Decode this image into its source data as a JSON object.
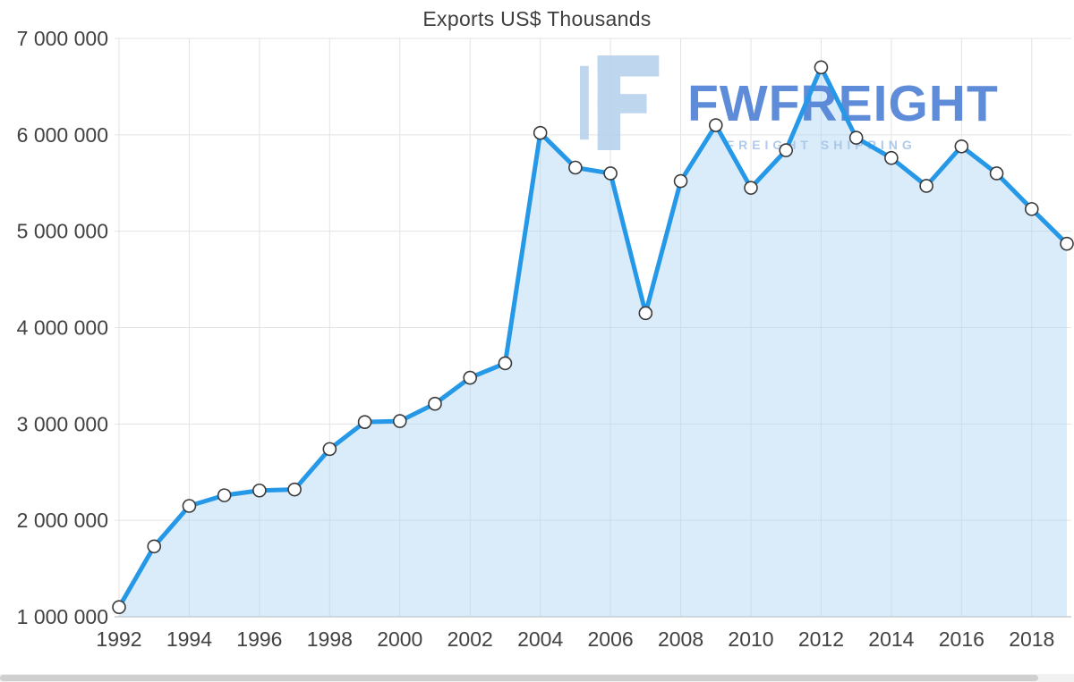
{
  "chart_data": {
    "type": "area",
    "title": "Exports US$ Thousands",
    "x": [
      1992,
      1993,
      1994,
      1995,
      1996,
      1997,
      1998,
      1999,
      2000,
      2001,
      2002,
      2003,
      2004,
      2005,
      2006,
      2007,
      2008,
      2009,
      2010,
      2011,
      2012,
      2013,
      2014,
      2015,
      2016,
      2017,
      2018,
      2019
    ],
    "values": [
      1100000,
      1730000,
      2150000,
      2260000,
      2310000,
      2320000,
      2740000,
      3020000,
      3030000,
      3210000,
      3480000,
      3630000,
      6020000,
      5660000,
      5600000,
      4150000,
      5520000,
      6100000,
      5450000,
      5840000,
      6700000,
      5970000,
      5760000,
      5470000,
      5880000,
      5600000,
      5230000,
      4870000
    ],
    "ylim": [
      1000000,
      7000000
    ],
    "y_ticks": [
      7000000,
      6000000,
      5000000,
      4000000,
      3000000,
      2000000,
      1000000
    ],
    "y_tick_labels": [
      "7 000 000",
      "6 000 000",
      "5 000 000",
      "4 000 000",
      "3 000 000",
      "2 000 000",
      "1 000 000"
    ],
    "x_ticks": [
      1992,
      1994,
      1996,
      1998,
      2000,
      2002,
      2004,
      2006,
      2008,
      2010,
      2012,
      2014,
      2016,
      2018
    ],
    "x_tick_labels": [
      "1992",
      "1994",
      "1996",
      "1998",
      "2000",
      "2002",
      "2004",
      "2006",
      "2008",
      "2010",
      "2012",
      "2014",
      "2016",
      "2018"
    ],
    "grid": true,
    "legend": "none",
    "line_color": "#2598e8",
    "fill_color": "#aed4f2",
    "fill_opacity": 0.45,
    "marker_fill": "#ffffff",
    "marker_stroke": "#3a3a3a",
    "gridline_color": "#e3e3e3",
    "baseline_color": "#cccccc",
    "axis_text_color": "#424242"
  },
  "watermark": {
    "brand": "FWFREIGHT",
    "tagline": "FREIGHT SHIPPING",
    "colors": {
      "logo": "#b9d2ee",
      "brand": "#4d80d5",
      "tagline": "#a7c5ea"
    }
  }
}
